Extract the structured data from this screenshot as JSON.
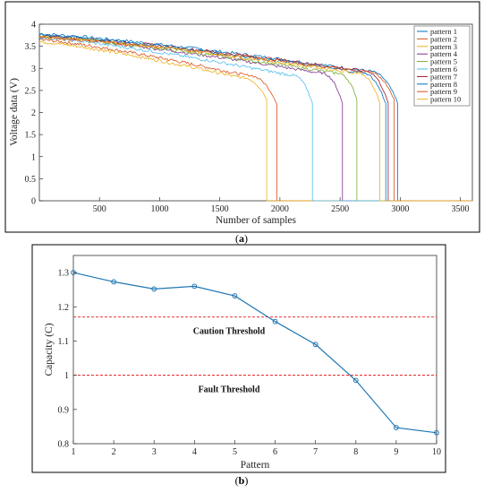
{
  "chart_data": [
    {
      "type": "line",
      "panel_label": "a",
      "xlabel": "Number of samples",
      "ylabel": "Voltage data (V)",
      "xlim": [
        0,
        3600
      ],
      "ylim": [
        0,
        4
      ],
      "xticks": [
        500,
        1000,
        1500,
        2000,
        2500,
        3000,
        3500
      ],
      "yticks": [
        0,
        0.5,
        1,
        1.5,
        2,
        2.5,
        3,
        3.5,
        4
      ],
      "legend_position": "top-right",
      "grid": false,
      "series": [
        {
          "name": "pattern 1",
          "color": "#0072bd",
          "start_v": 3.78,
          "knee_x": 2700,
          "knee_v": 2.95,
          "drop_x": 2980,
          "drop_v": 2.2
        },
        {
          "name": "pattern 2",
          "color": "#d95319",
          "start_v": 3.65,
          "knee_x": 1700,
          "knee_v": 2.85,
          "drop_x": 1975,
          "drop_v": 2.2
        },
        {
          "name": "pattern 3",
          "color": "#edb120",
          "start_v": 3.6,
          "knee_x": 1650,
          "knee_v": 2.8,
          "drop_x": 1890,
          "drop_v": 2.3
        },
        {
          "name": "pattern 4",
          "color": "#7e2f8e",
          "start_v": 3.72,
          "knee_x": 2320,
          "knee_v": 2.9,
          "drop_x": 2520,
          "drop_v": 2.2
        },
        {
          "name": "pattern 5",
          "color": "#77ac30",
          "start_v": 3.72,
          "knee_x": 2450,
          "knee_v": 2.9,
          "drop_x": 2640,
          "drop_v": 2.3
        },
        {
          "name": "pattern 6",
          "color": "#4dbeee",
          "start_v": 3.7,
          "knee_x": 2080,
          "knee_v": 2.85,
          "drop_x": 2270,
          "drop_v": 2.2
        },
        {
          "name": "pattern 7",
          "color": "#a2142f",
          "start_v": 3.74,
          "knee_x": 2680,
          "knee_v": 2.95,
          "drop_x": 2900,
          "drop_v": 2.2
        },
        {
          "name": "pattern 8",
          "color": "#0072bd",
          "start_v": 3.76,
          "knee_x": 2640,
          "knee_v": 2.92,
          "drop_x": 2880,
          "drop_v": 2.2
        },
        {
          "name": "pattern 9",
          "color": "#d95319",
          "start_v": 3.7,
          "knee_x": 2700,
          "knee_v": 2.92,
          "drop_x": 2950,
          "drop_v": 2.3
        },
        {
          "name": "pattern 10",
          "color": "#edb120",
          "start_v": 3.72,
          "knee_x": 2620,
          "knee_v": 2.9,
          "drop_x": 2830,
          "drop_v": 2.2
        }
      ]
    },
    {
      "type": "line",
      "panel_label": "b",
      "xlabel": "Pattern",
      "ylabel": "Capacity (C)",
      "xlim": [
        1,
        10
      ],
      "ylim": [
        0.8,
        1.35
      ],
      "xticks": [
        1,
        2,
        3,
        4,
        5,
        6,
        7,
        8,
        9,
        10
      ],
      "yticks": [
        0.8,
        0.9,
        1,
        1.1,
        1.2,
        1.3
      ],
      "grid": false,
      "series": [
        {
          "color": "#1f77b4",
          "x": [
            1,
            2,
            3,
            4,
            5,
            6,
            7,
            8,
            9,
            10
          ],
          "values": [
            1.3,
            1.273,
            1.252,
            1.26,
            1.232,
            1.157,
            1.09,
            0.985,
            0.847,
            0.832
          ]
        }
      ],
      "thresholds": [
        {
          "label": "Caution Threshold",
          "value": 1.17,
          "color": "#e41a1c"
        },
        {
          "label": "Fault Threshold",
          "value": 1.0,
          "color": "#e41a1c"
        }
      ]
    }
  ]
}
